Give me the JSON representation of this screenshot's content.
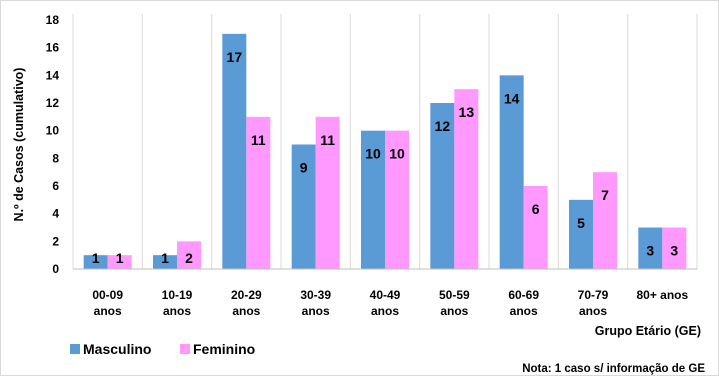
{
  "chart_data": {
    "type": "bar",
    "categories": [
      [
        "00-09",
        "anos"
      ],
      [
        "10-19",
        "anos"
      ],
      [
        "20-29",
        "anos"
      ],
      [
        "30-39",
        "anos"
      ],
      [
        "40-49",
        "anos"
      ],
      [
        "50-59",
        "anos"
      ],
      [
        "60-69",
        "anos"
      ],
      [
        "70-79",
        "anos"
      ],
      [
        "80+ anos"
      ]
    ],
    "series": [
      {
        "name": "Masculino",
        "color": "#5b9bd5",
        "values": [
          1,
          1,
          17,
          9,
          10,
          12,
          14,
          5,
          3
        ]
      },
      {
        "name": "Feminino",
        "color": "#ff99ff",
        "values": [
          1,
          2,
          11,
          11,
          10,
          13,
          6,
          7,
          3
        ]
      }
    ],
    "ylabel": "N.º de Casos (cumulativo)",
    "xlabel": "Grupo Etário (GE)",
    "ylim": [
      0,
      18
    ],
    "yticks": [
      0,
      2,
      4,
      6,
      8,
      10,
      12,
      14,
      16,
      18
    ],
    "grid": "vertical separators between categories",
    "legend_position": "bottom-left",
    "note": "Nota: 1 caso s/ informação de GE"
  }
}
